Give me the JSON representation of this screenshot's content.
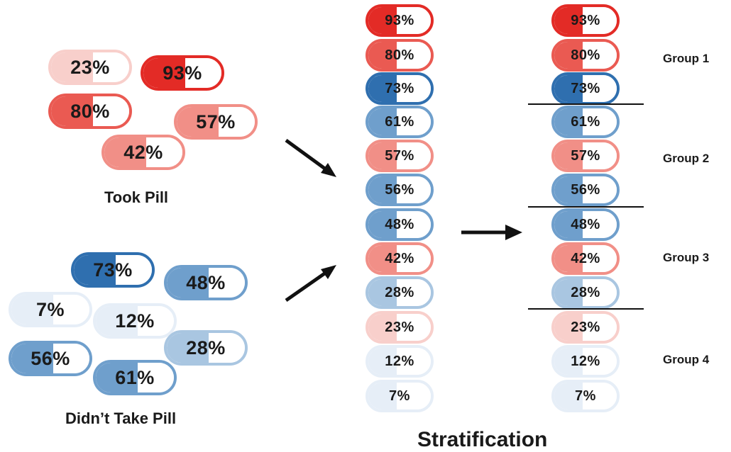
{
  "colors": {
    "red_dark": "#e32b26",
    "red_mid": "#ea5a52",
    "red_light": "#f18f87",
    "red_pale": "#f8cfcb",
    "blue_dark": "#2f6faf",
    "blue_mid": "#6f9fcc",
    "blue_light": "#a9c6e1",
    "blue_pale": "#e6eef7"
  },
  "labels": {
    "took_pill": "Took Pill",
    "didnt_take_pill": "Didn’t Take Pill",
    "stratification": "Stratification"
  },
  "groups": [
    "Group 1",
    "Group 2",
    "Group 3",
    "Group 4"
  ],
  "took_pill": [
    {
      "value": "23%",
      "color": "red_pale"
    },
    {
      "value": "93%",
      "color": "red_dark"
    },
    {
      "value": "80%",
      "color": "red_mid"
    },
    {
      "value": "57%",
      "color": "red_light"
    },
    {
      "value": "42%",
      "color": "red_light"
    }
  ],
  "didnt_take_pill": [
    {
      "value": "73%",
      "color": "blue_dark"
    },
    {
      "value": "48%",
      "color": "blue_mid"
    },
    {
      "value": "7%",
      "color": "blue_pale"
    },
    {
      "value": "12%",
      "color": "blue_pale"
    },
    {
      "value": "28%",
      "color": "blue_light"
    },
    {
      "value": "56%",
      "color": "blue_mid"
    },
    {
      "value": "61%",
      "color": "blue_mid"
    }
  ],
  "sorted": [
    {
      "value": "93%",
      "color": "red_dark"
    },
    {
      "value": "80%",
      "color": "red_mid"
    },
    {
      "value": "73%",
      "color": "blue_dark"
    },
    {
      "value": "61%",
      "color": "blue_mid"
    },
    {
      "value": "57%",
      "color": "red_light"
    },
    {
      "value": "56%",
      "color": "blue_mid"
    },
    {
      "value": "48%",
      "color": "blue_mid"
    },
    {
      "value": "42%",
      "color": "red_light"
    },
    {
      "value": "28%",
      "color": "blue_light"
    },
    {
      "value": "23%",
      "color": "red_pale"
    },
    {
      "value": "12%",
      "color": "blue_pale"
    },
    {
      "value": "7%",
      "color": "blue_pale"
    }
  ]
}
